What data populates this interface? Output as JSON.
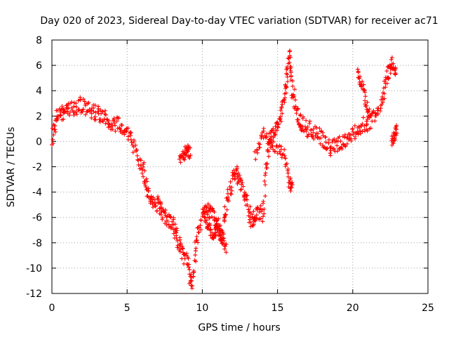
{
  "chart_data": {
    "type": "scatter",
    "title": "Day 020 of 2023, Sidereal Day-to-day VTEC variation (SDTVAR) for receiver ac71",
    "xlabel": "GPS time / hours",
    "ylabel": "SDTVAR / TECUs",
    "xlim": [
      0,
      25
    ],
    "ylim": [
      -12,
      8
    ],
    "xticks": [
      0,
      5,
      10,
      15,
      20,
      25
    ],
    "yticks": [
      -12,
      -10,
      -8,
      -6,
      -4,
      -2,
      0,
      2,
      4,
      6,
      8
    ],
    "grid": true,
    "marker": "+",
    "color": "#ff0000",
    "series": [
      {
        "name": "SDTVAR",
        "x": [
          0.0,
          0.3,
          0.6,
          1.0,
          1.5,
          2.0,
          2.5,
          3.0,
          3.5,
          4.0,
          4.5,
          5.0,
          5.5,
          6.0,
          6.3,
          6.6,
          7.0,
          7.3,
          7.6,
          8.0,
          8.3,
          8.6,
          9.0,
          9.3,
          9.6,
          10.0,
          10.3,
          10.6,
          11.0,
          11.3,
          11.6,
          12.0,
          12.3,
          12.6,
          13.0,
          13.3,
          13.6,
          14.0,
          14.3,
          14.6,
          15.0,
          15.3,
          15.6,
          15.8,
          16.0,
          16.3,
          16.6,
          17.0,
          17.5,
          18.0,
          18.5,
          19.0,
          19.5,
          20.0,
          20.5,
          21.0,
          21.5,
          22.0,
          22.3,
          22.6,
          22.9
        ],
        "y": [
          0.0,
          1.8,
          2.2,
          2.4,
          2.6,
          2.9,
          2.6,
          2.2,
          1.9,
          1.5,
          1.3,
          0.8,
          -0.5,
          -2.0,
          -3.5,
          -4.5,
          -5.0,
          -5.5,
          -6.0,
          -6.5,
          -7.5,
          -8.5,
          -9.5,
          -11.5,
          -8.0,
          -6.0,
          -5.5,
          -5.5,
          -6.5,
          -7.5,
          -5.0,
          -3.0,
          -2.5,
          -3.5,
          -5.0,
          -6.5,
          -5.5,
          -5.8,
          -1.5,
          0.5,
          1.2,
          2.5,
          4.8,
          6.8,
          4.0,
          2.2,
          1.5,
          1.0,
          0.8,
          0.2,
          -0.5,
          -0.2,
          0.0,
          0.6,
          1.2,
          1.5,
          2.0,
          3.5,
          5.2,
          6.0,
          4.8
        ],
        "extra_segments": [
          {
            "x": [
              13.5,
              14.0,
              14.5,
              15.0,
              15.5,
              15.8,
              16.0
            ],
            "y": [
              -1.2,
              0.8,
              0.0,
              -0.5,
              -1.0,
              -3.5,
              -3.2
            ]
          },
          {
            "x": [
              8.5,
              8.8,
              9.0,
              9.2
            ],
            "y": [
              -1.5,
              -1.0,
              -0.7,
              -1.0
            ]
          },
          {
            "x": [
              10.2,
              10.5,
              10.8,
              11.0,
              11.3,
              11.6
            ],
            "y": [
              -6.0,
              -7.0,
              -7.5,
              -6.5,
              -7.8,
              -8.5
            ]
          },
          {
            "x": [
              20.3,
              20.6,
              20.9,
              21.2
            ],
            "y": [
              5.5,
              4.5,
              3.0,
              1.5
            ]
          },
          {
            "x": [
              22.6,
              22.8,
              22.9
            ],
            "y": [
              -0.2,
              0.5,
              1.2
            ]
          }
        ]
      }
    ]
  }
}
